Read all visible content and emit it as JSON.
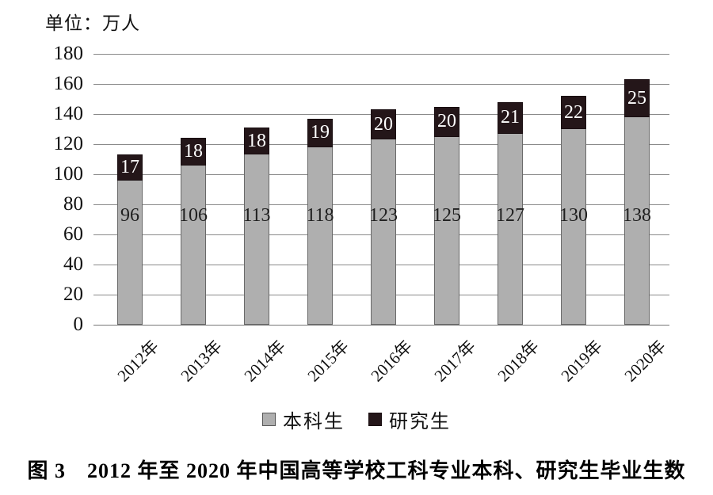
{
  "unit_label": "单位：万人",
  "caption": "图 3　2012 年至 2020 年中国高等学校工科专业本科、研究生毕业生数",
  "legend": {
    "items": [
      {
        "label": "本科生",
        "color": "#afafaf",
        "border": "#555555"
      },
      {
        "label": "研究生",
        "color": "#241619",
        "border": "#190e11"
      }
    ]
  },
  "chart_data": {
    "type": "bar",
    "stacked": true,
    "title": "",
    "unit": "万人",
    "categories": [
      "2012年",
      "2013年",
      "2014年",
      "2015年",
      "2016年",
      "2017年",
      "2018年",
      "2019年",
      "2020年"
    ],
    "series": [
      {
        "name": "本科生",
        "color": "#afafaf",
        "values": [
          96,
          106,
          113,
          118,
          123,
          125,
          127,
          130,
          138
        ]
      },
      {
        "name": "研究生",
        "color": "#241619",
        "values": [
          17,
          18,
          18,
          19,
          20,
          20,
          21,
          22,
          25
        ]
      }
    ],
    "totals": [
      113,
      124,
      131,
      137,
      143,
      145,
      148,
      152,
      163
    ],
    "ylim": [
      0,
      180
    ],
    "yticks": [
      0,
      20,
      40,
      60,
      80,
      100,
      120,
      140,
      160,
      180
    ],
    "grid": true,
    "legend_position": "bottom"
  }
}
